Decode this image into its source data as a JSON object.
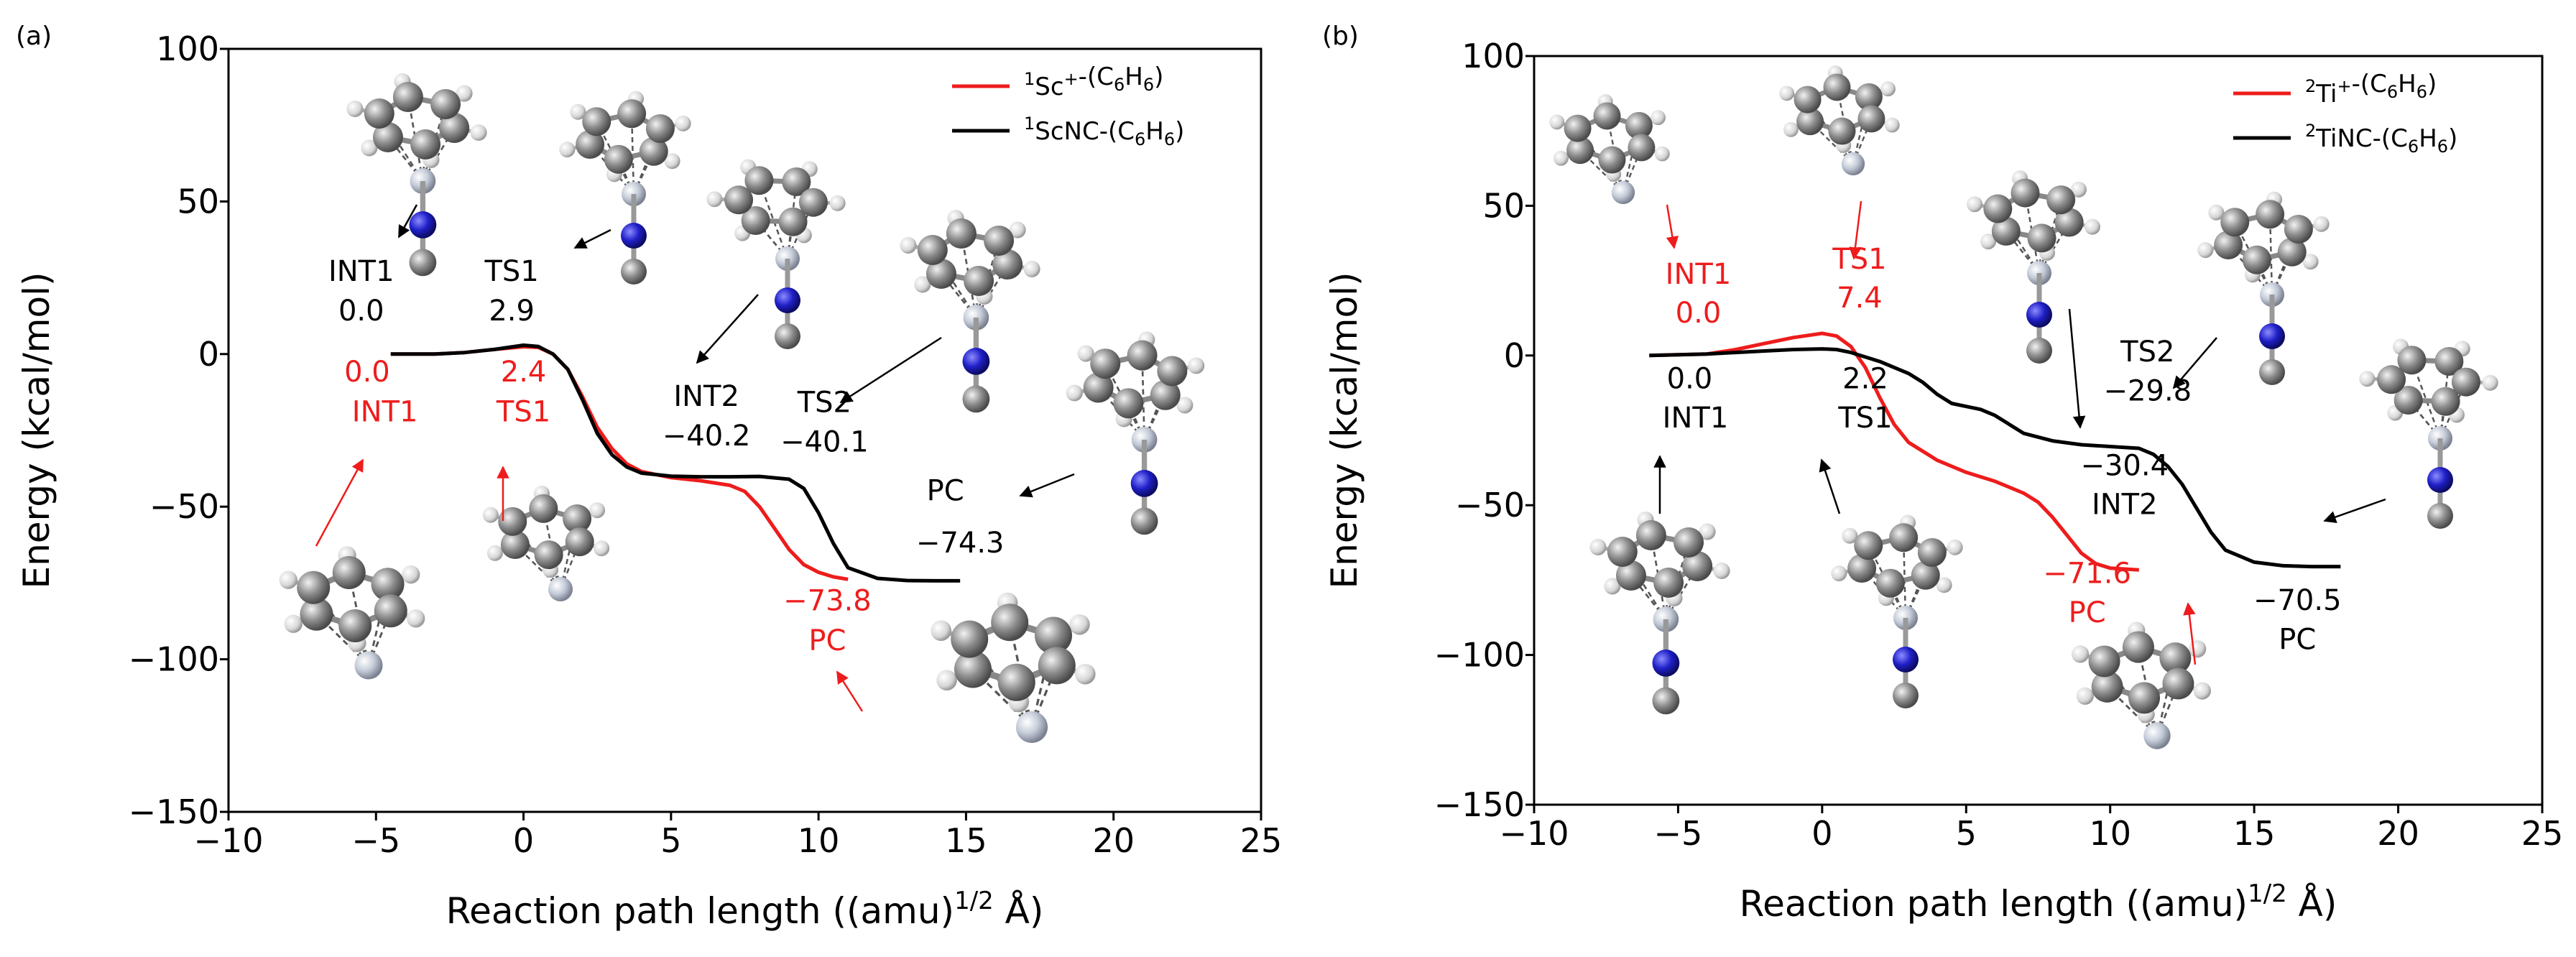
{
  "colors": {
    "sc_red": "#ee1c1c",
    "scnc_black": "#000000",
    "atom_carbon": "#8c8c8c",
    "atom_hydrogen": "#e6e6e6",
    "atom_nitrogen": "#1f1fc8",
    "atom_metal": "#c4cbd8",
    "arrow_red": "#ee1c1c"
  },
  "chart_data": [
    {
      "panel_label": "(a)",
      "type": "line",
      "xlabel_main": "Reaction path length ((amu)",
      "xlabel_sup": "1/2",
      "xlabel_tail": " Å)",
      "ylabel": "Energy (kcal/mol)",
      "xlim": [
        -10,
        25
      ],
      "ylim": [
        -150,
        100
      ],
      "xticks": [
        -10,
        -5,
        0,
        5,
        10,
        15,
        20,
        25
      ],
      "xtick_labels": [
        "−10",
        "−5",
        "0",
        "5",
        "10",
        "15",
        "20",
        "25"
      ],
      "yticks": [
        100,
        50,
        0,
        -50,
        -100,
        -150
      ],
      "ytick_labels": [
        "100",
        "50",
        "0",
        "−50",
        "−100",
        "−150"
      ],
      "legend": [
        {
          "sup": "1",
          "main": "Sc",
          "sup2": "+",
          "tail_pre": "-(C",
          "sub1": "6",
          "tail_mid": "H",
          "sub2": "6",
          "tail_end": ")",
          "color": "red"
        },
        {
          "sup": "1",
          "main": "ScNC",
          "sup2": "",
          "tail_pre": "-(C",
          "sub1": "6",
          "tail_mid": "H",
          "sub2": "6",
          "tail_end": ")",
          "color": "black"
        }
      ],
      "series": [
        {
          "name": "1Sc+-(C6H6)",
          "color": "red",
          "x": [
            -4.5,
            -3,
            -2,
            -1,
            0,
            0.5,
            1,
            1.5,
            2,
            2.5,
            3,
            3.5,
            4,
            5,
            6,
            7,
            7.5,
            8,
            8.5,
            9,
            9.5,
            10,
            10.5,
            11
          ],
          "y": [
            0,
            0,
            0.5,
            1.5,
            2.4,
            2.2,
            0,
            -5,
            -14,
            -24,
            -31,
            -36,
            -38.5,
            -40.5,
            -41.5,
            -43,
            -45,
            -50,
            -57,
            -64,
            -69,
            -71.5,
            -73,
            -73.8
          ]
        },
        {
          "name": "1ScNC-(C6H6)",
          "color": "black",
          "x": [
            -4.5,
            -3,
            -2,
            -1,
            0,
            0.5,
            1,
            1.5,
            2,
            2.5,
            3,
            3.5,
            4,
            5,
            6,
            7,
            8,
            9,
            9.5,
            10,
            10.5,
            11,
            12,
            13,
            14,
            14.8
          ],
          "y": [
            0,
            0,
            0.5,
            1.5,
            2.9,
            2.5,
            0,
            -5,
            -15,
            -26,
            -33,
            -37,
            -39,
            -40,
            -40.2,
            -40.2,
            -40.1,
            -41,
            -44,
            -52,
            -62,
            -70,
            -73.5,
            -74.2,
            -74.3,
            -74.3
          ]
        }
      ],
      "annotations": {
        "black": [
          {
            "text": "INT1",
            "x": -5.5,
            "y": 24
          },
          {
            "text": "0.0",
            "x": -5.5,
            "y": 11
          },
          {
            "text": "TS1",
            "x": -0.4,
            "y": 24
          },
          {
            "text": "2.9",
            "x": -0.4,
            "y": 11
          },
          {
            "text": "INT2",
            "x": 6.2,
            "y": -17
          },
          {
            "text": "−40.2",
            "x": 6.2,
            "y": -30
          },
          {
            "text": "TS2",
            "x": 10.2,
            "y": -19
          },
          {
            "text": "−40.1",
            "x": 10.2,
            "y": -32
          },
          {
            "text": "PC",
            "x": 14.3,
            "y": -48
          },
          {
            "text": "−74.3",
            "x": 14.8,
            "y": -65
          }
        ],
        "red": [
          {
            "text": "0.0",
            "x": -5.3,
            "y": -9
          },
          {
            "text": "INT1",
            "x": -4.7,
            "y": -22
          },
          {
            "text": "2.4",
            "x": 0,
            "y": -9
          },
          {
            "text": "TS1",
            "x": 0,
            "y": -22
          },
          {
            "text": "−73.8",
            "x": 10.3,
            "y": -84
          },
          {
            "text": "PC",
            "x": 10.3,
            "y": -97
          }
        ]
      }
    },
    {
      "panel_label": "(b)",
      "type": "line",
      "xlabel_main": "Reaction path length ((amu)",
      "xlabel_sup": "1/2",
      "xlabel_tail": " Å)",
      "ylabel": "Energy (kcal/mol)",
      "xlim": [
        -10,
        25
      ],
      "ylim": [
        -150,
        100
      ],
      "xticks": [
        -10,
        -5,
        0,
        5,
        10,
        15,
        20,
        25
      ],
      "xtick_labels": [
        "−10",
        "−5",
        "0",
        "5",
        "10",
        "15",
        "20",
        "25"
      ],
      "yticks": [
        100,
        50,
        0,
        -50,
        -100,
        -150
      ],
      "ytick_labels": [
        "100",
        "50",
        "0",
        "−50",
        "−100",
        "−150"
      ],
      "legend": [
        {
          "sup": "2",
          "main": "Ti",
          "sup2": "+",
          "tail_pre": "-(C",
          "sub1": "6",
          "tail_mid": "H",
          "sub2": "6",
          "tail_end": ")",
          "color": "red"
        },
        {
          "sup": "2",
          "main": "TiNC",
          "sup2": "",
          "tail_pre": "-(C",
          "sub1": "6",
          "tail_mid": "H",
          "sub2": "6",
          "tail_end": ")",
          "color": "black"
        }
      ],
      "series": [
        {
          "name": "2Ti+-(C6H6)",
          "color": "red",
          "x": [
            -6,
            -4,
            -3,
            -2,
            -1,
            0,
            0.5,
            1,
            1.5,
            2,
            2.5,
            3,
            4,
            5,
            6,
            7,
            7.5,
            8,
            8.5,
            9,
            9.5,
            10,
            11
          ],
          "y": [
            0,
            0.5,
            2,
            4,
            6,
            7.4,
            6.5,
            3,
            -4,
            -14,
            -23,
            -29,
            -35,
            -39,
            -42,
            -46,
            -49,
            -54,
            -60,
            -66,
            -69.5,
            -71,
            -71.6
          ]
        },
        {
          "name": "2TiNC-(C6H6)",
          "color": "black",
          "x": [
            -6,
            -4,
            -3,
            -2,
            -1,
            0,
            0.5,
            1,
            2,
            3,
            3.5,
            4,
            4.5,
            5,
            5.5,
            6,
            6.5,
            7,
            8,
            9,
            10,
            11,
            11.5,
            12,
            12.5,
            13,
            13.5,
            14,
            15,
            16,
            17,
            18
          ],
          "y": [
            0,
            0.5,
            1,
            1.5,
            2,
            2.2,
            2,
            1,
            -2,
            -6,
            -9,
            -13,
            -16,
            -17,
            -18,
            -20,
            -23,
            -26,
            -28.5,
            -29.8,
            -30.4,
            -31,
            -33,
            -37,
            -43,
            -51,
            -59,
            -65,
            -69,
            -70.2,
            -70.5,
            -70.5
          ]
        }
      ],
      "annotations": {
        "black": [
          {
            "text": "0.0",
            "x": -4.6,
            "y": -11
          },
          {
            "text": "INT1",
            "x": -4.4,
            "y": -24
          },
          {
            "text": "2.2",
            "x": 1.5,
            "y": -11
          },
          {
            "text": "TS1",
            "x": 1.5,
            "y": -24
          },
          {
            "text": "TS2",
            "x": 11.3,
            "y": -2
          },
          {
            "text": "−29.8",
            "x": 11.3,
            "y": -15
          },
          {
            "text": "−30.4",
            "x": 10.5,
            "y": -40
          },
          {
            "text": "INT2",
            "x": 10.5,
            "y": -53
          },
          {
            "text": "−70.5",
            "x": 16.5,
            "y": -85
          },
          {
            "text": "PC",
            "x": 16.5,
            "y": -98
          }
        ],
        "red": [
          {
            "text": "INT1",
            "x": -4.3,
            "y": 24
          },
          {
            "text": "0.0",
            "x": -4.3,
            "y": 11
          },
          {
            "text": "TS1",
            "x": 1.3,
            "y": 29
          },
          {
            "text": "7.4",
            "x": 1.3,
            "y": 16
          },
          {
            "text": "−71.6",
            "x": 9.2,
            "y": -76
          },
          {
            "text": "PC",
            "x": 9.2,
            "y": -89
          }
        ]
      }
    }
  ]
}
